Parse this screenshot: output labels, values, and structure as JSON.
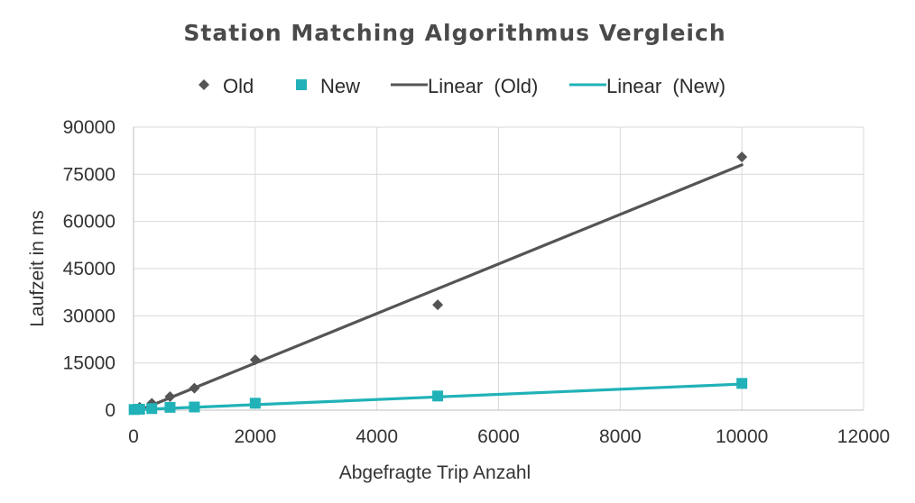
{
  "chart_data": {
    "type": "scatter",
    "title": "Station Matching Algorithmus Vergleich",
    "xlabel": "Abgefragte Trip Anzahl",
    "ylabel": "Laufzeit in ms",
    "xlim": [
      0,
      12000
    ],
    "ylim": [
      0,
      90000
    ],
    "x_ticks": [
      0,
      2000,
      4000,
      6000,
      8000,
      10000,
      12000
    ],
    "y_ticks": [
      0,
      15000,
      30000,
      45000,
      60000,
      75000,
      90000
    ],
    "grid": true,
    "legend_position": "top",
    "series": [
      {
        "name": "Old",
        "kind": "scatter",
        "marker": "diamond",
        "color": "#555555",
        "points": [
          [
            10,
            300
          ],
          [
            100,
            900
          ],
          [
            300,
            2200
          ],
          [
            600,
            4300
          ],
          [
            1000,
            7000
          ],
          [
            2000,
            16000
          ],
          [
            5000,
            33500
          ],
          [
            10000,
            80500
          ]
        ]
      },
      {
        "name": "New",
        "kind": "scatter",
        "marker": "square",
        "color": "#20b2b8",
        "points": [
          [
            10,
            200
          ],
          [
            100,
            300
          ],
          [
            300,
            500
          ],
          [
            600,
            900
          ],
          [
            1000,
            1000
          ],
          [
            2000,
            2200
          ],
          [
            5000,
            4500
          ],
          [
            10000,
            8500
          ]
        ]
      },
      {
        "name": "Linear  (Old)",
        "kind": "trendline",
        "color": "#555555",
        "points": [
          [
            0,
            -800
          ],
          [
            10000,
            78000
          ]
        ]
      },
      {
        "name": "Linear  (New)",
        "kind": "trendline",
        "color": "#20b2b8",
        "points": [
          [
            0,
            100
          ],
          [
            10000,
            8300
          ]
        ]
      }
    ]
  }
}
